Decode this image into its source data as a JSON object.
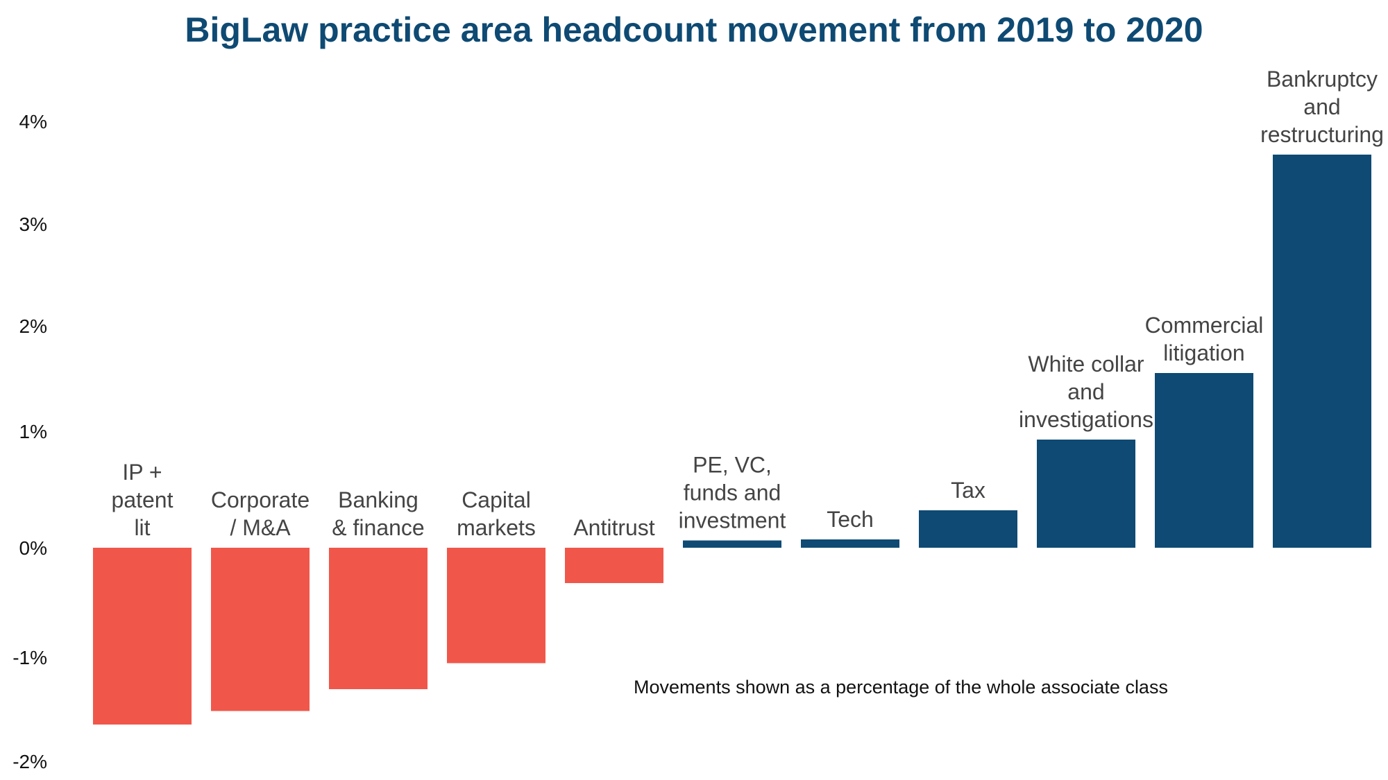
{
  "chart_data": {
    "type": "bar",
    "title": "BigLaw practice area headcount movement from 2019 to 2020",
    "annotation": "Movements shown as a percentage of the whole associate class",
    "y_ticks": [
      "4%",
      "3%",
      "2%",
      "1%",
      "0%",
      "-1%",
      "-2%"
    ],
    "categories": [
      [
        "IP +",
        "patent",
        "lit"
      ],
      [
        "Corporate",
        "/ M&A"
      ],
      [
        "Banking",
        "& finance"
      ],
      [
        "Capital",
        "markets"
      ],
      [
        "Antitrust"
      ],
      [
        "PE, VC,",
        "funds and",
        "investment"
      ],
      [
        "Tech"
      ],
      [
        "Tax"
      ],
      [
        "White collar",
        "and",
        "investigations"
      ],
      [
        "Commercial",
        "litigation"
      ],
      [
        "Bankruptcy",
        "and",
        "restructuring"
      ]
    ],
    "values": [
      -1.7,
      -1.57,
      -1.36,
      -1.11,
      -0.34,
      0.07,
      0.08,
      0.36,
      1.04,
      1.68,
      3.78
    ],
    "ylim": [
      -2,
      4
    ],
    "grid": false,
    "colors": {
      "negative": "#f0574a",
      "positive": "#0e4a73",
      "title": "#0e4a73"
    }
  }
}
